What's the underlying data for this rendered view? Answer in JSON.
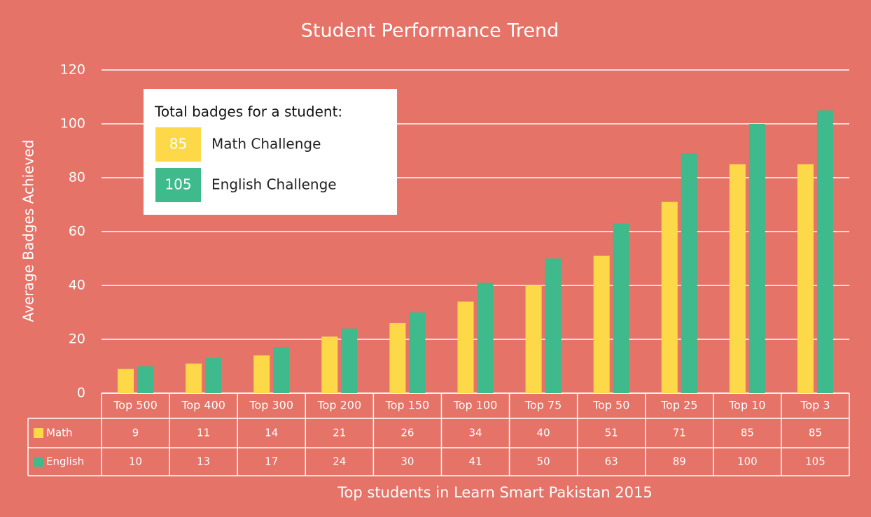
{
  "chart_data": {
    "type": "bar",
    "title": "Student Performance Trend",
    "y_label": "Average Badges Achieved",
    "x_label": "Top students in Learn Smart Pakistan 2015",
    "categories": [
      "Top 500",
      "Top 400",
      "Top 300",
      "Top 200",
      "Top 150",
      "Top 100",
      "Top 75",
      "Top 50",
      "Top 25",
      "Top 10",
      "Top 3"
    ],
    "series": [
      {
        "name": "Math",
        "color": "#fdd94a",
        "values": [
          9,
          11,
          14,
          21,
          26,
          34,
          40,
          51,
          71,
          85,
          85
        ]
      },
      {
        "name": "English",
        "color": "#3fba8c",
        "values": [
          10,
          13,
          17,
          24,
          30,
          41,
          50,
          63,
          89,
          100,
          105
        ]
      }
    ],
    "ylim": [
      0,
      120
    ],
    "yticks": [
      0,
      20,
      40,
      60,
      80,
      100,
      120
    ],
    "grid": true,
    "legend": {
      "title": "Total badges for a student:",
      "items": [
        {
          "value": 85,
          "label": "Math Challenge"
        },
        {
          "value": 105,
          "label": "English Challenge"
        }
      ]
    }
  }
}
